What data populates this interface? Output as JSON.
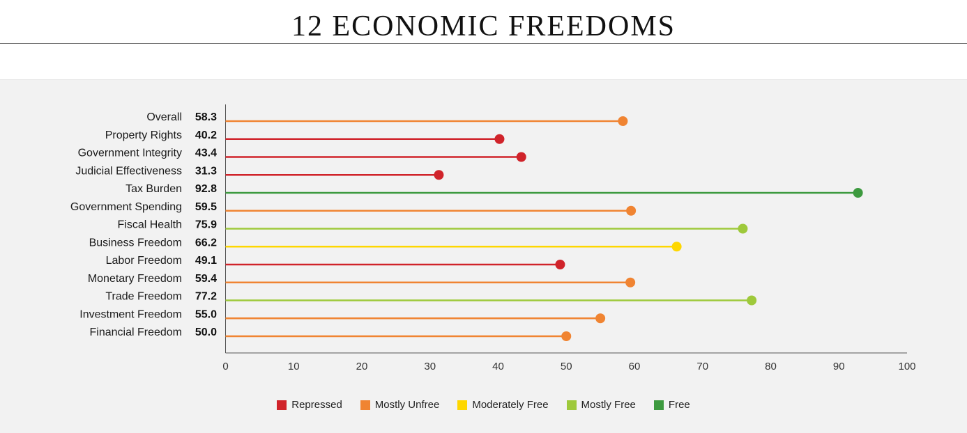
{
  "title": "12 ECONOMIC FREEDOMS",
  "chart_data": {
    "type": "lollipop",
    "title": "12 ECONOMIC FREEDOMS",
    "xlim": [
      0,
      100
    ],
    "xticks": [
      0,
      10,
      20,
      30,
      40,
      50,
      60,
      70,
      80,
      90,
      100
    ],
    "categories": [
      "Overall",
      "Property Rights",
      "Government Integrity",
      "Judicial Effectiveness",
      "Tax Burden",
      "Government Spending",
      "Fiscal Health",
      "Business Freedom",
      "Labor Freedom",
      "Monetary Freedom",
      "Trade Freedom",
      "Investment Freedom",
      "Financial Freedom"
    ],
    "values": [
      58.3,
      40.2,
      43.4,
      31.3,
      92.8,
      59.5,
      75.9,
      66.2,
      49.1,
      59.4,
      77.2,
      55.0,
      50.0
    ],
    "value_labels": [
      "58.3",
      "40.2",
      "43.4",
      "31.3",
      "92.8",
      "59.5",
      "75.9",
      "66.2",
      "49.1",
      "59.4",
      "77.2",
      "55.0",
      "50.0"
    ],
    "status": [
      "Mostly Unfree",
      "Repressed",
      "Repressed",
      "Repressed",
      "Free",
      "Mostly Unfree",
      "Mostly Free",
      "Moderately Free",
      "Repressed",
      "Mostly Unfree",
      "Mostly Free",
      "Mostly Unfree",
      "Mostly Unfree"
    ],
    "legend": [
      {
        "name": "Repressed",
        "color": "#d0232a"
      },
      {
        "name": "Mostly Unfree",
        "color": "#f08432"
      },
      {
        "name": "Moderately Free",
        "color": "#fed700"
      },
      {
        "name": "Mostly Free",
        "color": "#9ec93b"
      },
      {
        "name": "Free",
        "color": "#3d9a3f"
      }
    ],
    "legend_position": "bottom",
    "grid": false
  }
}
